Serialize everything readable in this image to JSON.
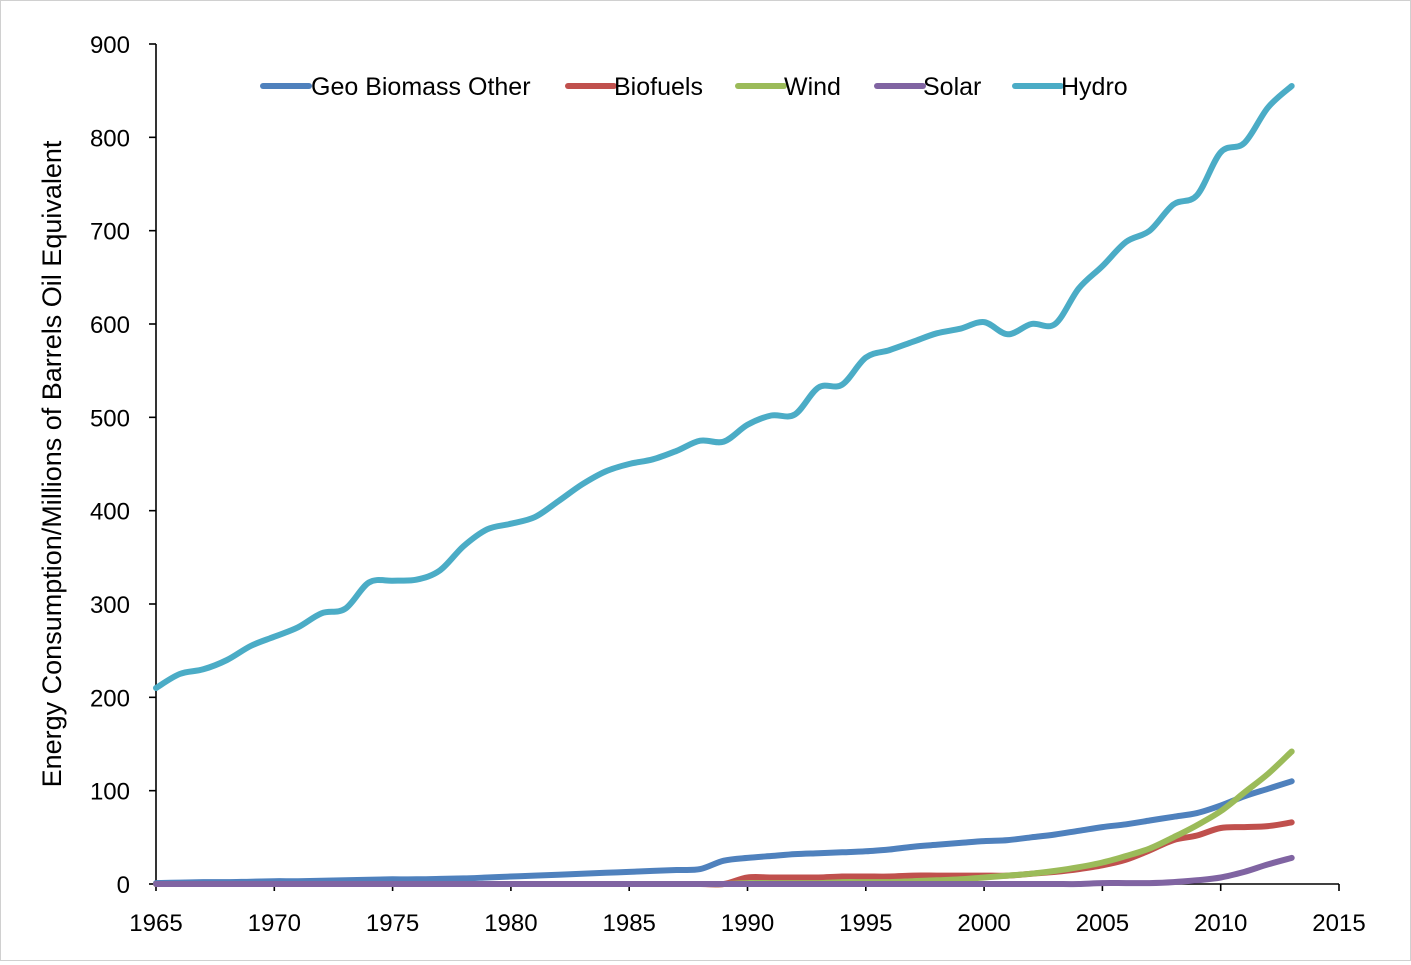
{
  "chart_data": {
    "type": "line",
    "title": "",
    "xlabel": "",
    "ylabel": "Energy Consumption/Millions of Barrels Oil Equivalent",
    "xlim": [
      1965,
      2015
    ],
    "ylim": [
      0,
      900
    ],
    "xticks": [
      1965,
      1970,
      1975,
      1980,
      1985,
      1990,
      1995,
      2000,
      2005,
      2010,
      2015
    ],
    "yticks": [
      0,
      100,
      200,
      300,
      400,
      500,
      600,
      700,
      800,
      900
    ],
    "grid": false,
    "legend_position": "top",
    "x": [
      1965,
      1966,
      1967,
      1968,
      1969,
      1970,
      1971,
      1972,
      1973,
      1974,
      1975,
      1976,
      1977,
      1978,
      1979,
      1980,
      1981,
      1982,
      1983,
      1984,
      1985,
      1986,
      1987,
      1988,
      1989,
      1990,
      1991,
      1992,
      1993,
      1994,
      1995,
      1996,
      1997,
      1998,
      1999,
      2000,
      2001,
      2002,
      2003,
      2004,
      2005,
      2006,
      2007,
      2008,
      2009,
      2010,
      2011,
      2012,
      2013
    ],
    "series": [
      {
        "name": "Geo Biomass Other",
        "color": "#4f81bd",
        "values": [
          1,
          1.5,
          2,
          2,
          2.5,
          3,
          3,
          3.5,
          4,
          4.5,
          5,
          5,
          5.5,
          6,
          7,
          8,
          9,
          10,
          11,
          12,
          13,
          14,
          15,
          16,
          25,
          28,
          30,
          32,
          33,
          34,
          35,
          37,
          40,
          42,
          44,
          46,
          47,
          50,
          53,
          57,
          61,
          64,
          68,
          72,
          76,
          84,
          94,
          102,
          110
        ]
      },
      {
        "name": "Biofuels",
        "color": "#c0504d",
        "values": [
          0,
          0,
          0,
          0,
          0,
          0,
          0,
          0,
          0,
          0,
          0,
          0,
          0,
          0,
          0,
          0,
          0,
          0,
          0,
          0,
          0,
          0,
          0,
          0,
          0,
          7,
          7,
          7,
          7,
          8,
          8,
          8,
          9,
          9,
          9,
          9,
          9,
          11,
          13,
          16,
          20,
          26,
          36,
          47,
          52,
          60,
          61,
          62,
          66
        ]
      },
      {
        "name": "Wind",
        "color": "#9bbb59",
        "values": [
          0,
          0,
          0,
          0,
          0,
          0,
          0,
          0,
          0,
          0,
          0,
          0,
          0,
          0,
          0,
          0,
          0,
          0,
          0,
          0,
          0,
          0,
          0,
          0,
          0,
          1,
          1,
          1,
          1,
          2,
          2,
          2,
          3,
          4,
          5,
          7,
          9,
          11,
          14,
          18,
          23,
          30,
          38,
          50,
          63,
          78,
          98,
          118,
          142
        ]
      },
      {
        "name": "Solar",
        "color": "#8064a2",
        "values": [
          0,
          0,
          0,
          0,
          0,
          0,
          0,
          0,
          0,
          0,
          0,
          0,
          0,
          0,
          0,
          0,
          0,
          0,
          0,
          0,
          0,
          0,
          0,
          0,
          0,
          0,
          0,
          0,
          0,
          0,
          0,
          0,
          0,
          0,
          0,
          0,
          0,
          0,
          0,
          0,
          1,
          1,
          1,
          2,
          4,
          7,
          13,
          21,
          28
        ]
      },
      {
        "name": "Hydro",
        "color": "#4bacc6",
        "values": [
          210,
          225,
          230,
          240,
          255,
          265,
          275,
          290,
          295,
          323,
          325,
          326,
          336,
          362,
          380,
          386,
          393,
          410,
          428,
          442,
          450,
          455,
          464,
          475,
          474,
          492,
          502,
          503,
          532,
          535,
          564,
          572,
          581,
          590,
          595,
          602,
          589,
          600,
          600,
          638,
          662,
          688,
          700,
          728,
          738,
          784,
          794,
          832,
          855
        ]
      }
    ]
  }
}
